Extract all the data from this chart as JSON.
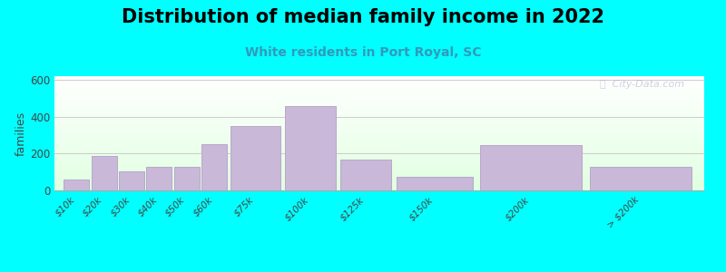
{
  "title": "Distribution of median family income in 2022",
  "subtitle": "White residents in Port Royal, SC",
  "bar_lefts": [
    0,
    1,
    2,
    3,
    4,
    5,
    6,
    8,
    10,
    12,
    15,
    19
  ],
  "bar_widths": [
    1,
    1,
    1,
    1,
    1,
    1,
    2,
    2,
    2,
    3,
    4,
    4
  ],
  "values": [
    60,
    185,
    105,
    130,
    130,
    250,
    350,
    460,
    165,
    75,
    245,
    130
  ],
  "tick_positions": [
    0.5,
    1.5,
    2.5,
    3.5,
    4.5,
    5.5,
    7,
    9,
    11,
    13.5,
    17,
    21
  ],
  "tick_labels": [
    "$10k",
    "$20k",
    "$30k",
    "$40k",
    "$50k",
    "$60k",
    "$75k",
    "$100k",
    "$125k",
    "$150k",
    "$200k",
    "> $200k"
  ],
  "bar_color": "#c9b8d8",
  "bar_edge_color": "#b8a8cc",
  "outer_bg": "#00ffff",
  "title_fontsize": 15,
  "subtitle_fontsize": 10,
  "ylabel": "families",
  "ylim": [
    0,
    620
  ],
  "yticks": [
    0,
    200,
    400,
    600
  ],
  "grid_color": "#cccccc",
  "watermark_text": "ⓘ  City-Data.com",
  "title_color": "#000000",
  "subtitle_color": "#3399bb"
}
